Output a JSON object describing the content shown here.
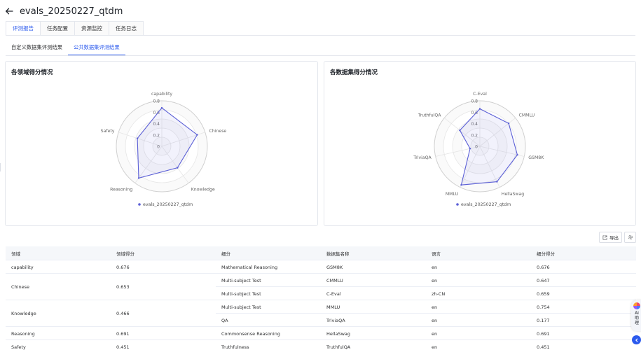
{
  "header": {
    "title": "evals_20250227_qtdm"
  },
  "tabs": [
    {
      "label": "评测报告",
      "active": true
    },
    {
      "label": "任务配置",
      "active": false
    },
    {
      "label": "资源监控",
      "active": false
    },
    {
      "label": "任务日志",
      "active": false
    }
  ],
  "subtabs": [
    {
      "label": "自定义数据集评测结果",
      "active": false
    },
    {
      "label": "公共数据集评测结果",
      "active": true
    }
  ],
  "domain_card": {
    "title": "各领域得分情况"
  },
  "dataset_card": {
    "title": "各数据集得分情况"
  },
  "toolbar": {
    "export_label": "导出"
  },
  "chart_data": [
    {
      "type": "radar",
      "axes": [
        "capability",
        "Chinese",
        "Knowledge",
        "Reasoning",
        "Safety"
      ],
      "ticks": [
        "0",
        "0.2",
        "0.4",
        "0.6",
        "0.8"
      ],
      "rlim": [
        0,
        0.8
      ],
      "series": [
        {
          "name": "evals_20250227_qtdm",
          "values": [
            0.676,
            0.653,
            0.466,
            0.691,
            0.451
          ]
        }
      ],
      "legend": "bottom",
      "color": "#5b5fd6"
    },
    {
      "type": "radar",
      "axes": [
        "C-Eval",
        "CMMLU",
        "GSM8K",
        "HellaSwag",
        "MMLU",
        "TriviaQA",
        "TruthfulQA"
      ],
      "ticks": [
        "0",
        "0.2",
        "0.4",
        "0.6",
        "0.8"
      ],
      "rlim": [
        0,
        0.8
      ],
      "series": [
        {
          "name": "evals_20250227_qtdm",
          "values": [
            0.659,
            0.647,
            0.676,
            0.691,
            0.754,
            0.177,
            0.451
          ]
        }
      ],
      "legend": "bottom",
      "color": "#5b5fd6"
    }
  ],
  "table": {
    "columns": [
      "领域",
      "领域得分",
      "细分",
      "数据集名称",
      "语言",
      "细分得分"
    ],
    "groups": [
      {
        "domain": "capability",
        "score": "0.676",
        "rows": [
          {
            "sub": "Mathematical Reasoning",
            "dataset": "GSM8K",
            "lang": "en",
            "subscore": "0.676"
          }
        ]
      },
      {
        "domain": "Chinese",
        "score": "0.653",
        "rows": [
          {
            "sub": "Multi-subject Test",
            "dataset": "CMMLU",
            "lang": "en",
            "subscore": "0.647"
          },
          {
            "sub": "Multi-subject Test",
            "dataset": "C-Eval",
            "lang": "zh-CN",
            "subscore": "0.659"
          }
        ]
      },
      {
        "domain": "Knowledge",
        "score": "0.466",
        "rows": [
          {
            "sub": "Multi-subject Test",
            "dataset": "MMLU",
            "lang": "en",
            "subscore": "0.754"
          },
          {
            "sub": "QA",
            "dataset": "TriviaQA",
            "lang": "en",
            "subscore": "0.177"
          }
        ]
      },
      {
        "domain": "Reasoning",
        "score": "0.691",
        "rows": [
          {
            "sub": "Commonsense Reasoning",
            "dataset": "HellaSwag",
            "lang": "en",
            "subscore": "0.691"
          }
        ]
      },
      {
        "domain": "Safety",
        "score": "0.451",
        "rows": [
          {
            "sub": "Truthfulness",
            "dataset": "TruthfulQA",
            "lang": "en",
            "subscore": "0.451"
          }
        ]
      }
    ]
  },
  "assistant": {
    "label": [
      "AI",
      "助",
      "理"
    ]
  }
}
